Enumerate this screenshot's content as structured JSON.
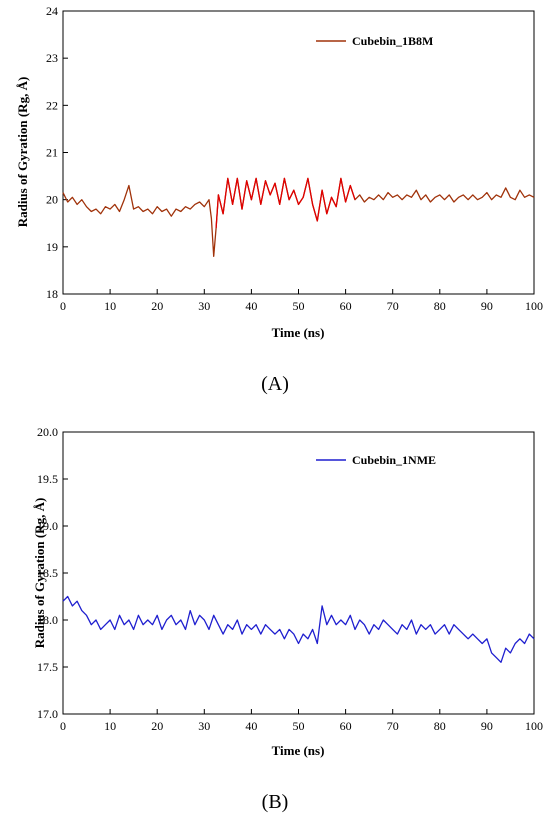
{
  "chart_data": [
    {
      "type": "line",
      "panel_label": "(A)",
      "xlabel": "Time (ns)",
      "ylabel": "Radius of Gyration (Rg, Å)",
      "xlim": [
        0,
        100
      ],
      "ylim": [
        18,
        24
      ],
      "xticks": [
        "0",
        "10",
        "20",
        "30",
        "40",
        "50",
        "60",
        "70",
        "80",
        "90",
        "100"
      ],
      "yticks": [
        "18",
        "19",
        "20",
        "21",
        "22",
        "23",
        "24"
      ],
      "legend_position": "top-right",
      "grid": false,
      "series": [
        {
          "name": "Cubebin_1B8M",
          "color": "#a0320a",
          "highlight_color": "#e00000",
          "x": [
            0,
            1,
            2,
            3,
            4,
            5,
            6,
            7,
            8,
            9,
            10,
            11,
            12,
            13,
            14,
            15,
            16,
            17,
            18,
            19,
            20,
            21,
            22,
            23,
            24,
            25,
            26,
            27,
            28,
            29,
            30,
            31,
            31.5,
            32,
            32.5,
            33,
            34,
            35,
            36,
            37,
            38,
            39,
            40,
            41,
            42,
            43,
            44,
            45,
            46,
            47,
            48,
            49,
            50,
            51,
            52,
            53,
            54,
            55,
            56,
            57,
            58,
            59,
            60,
            61,
            62,
            63,
            64,
            65,
            66,
            67,
            68,
            69,
            70,
            71,
            72,
            73,
            74,
            75,
            76,
            77,
            78,
            79,
            80,
            81,
            82,
            83,
            84,
            85,
            86,
            87,
            88,
            89,
            90,
            91,
            92,
            93,
            94,
            95,
            96,
            97,
            98,
            99,
            100
          ],
          "y": [
            20.15,
            19.95,
            20.05,
            19.9,
            20.0,
            19.85,
            19.75,
            19.8,
            19.7,
            19.85,
            19.8,
            19.9,
            19.75,
            20.0,
            20.3,
            19.8,
            19.85,
            19.75,
            19.8,
            19.7,
            19.85,
            19.75,
            19.8,
            19.65,
            19.8,
            19.75,
            19.85,
            19.8,
            19.9,
            19.95,
            19.85,
            20.0,
            19.6,
            18.8,
            19.4,
            20.1,
            19.7,
            20.45,
            19.9,
            20.45,
            19.8,
            20.4,
            20.0,
            20.45,
            19.9,
            20.4,
            20.1,
            20.35,
            19.9,
            20.45,
            20.0,
            20.2,
            19.9,
            20.05,
            20.45,
            19.9,
            19.55,
            20.2,
            19.7,
            20.05,
            19.85,
            20.45,
            19.95,
            20.3,
            20.0,
            20.1,
            19.95,
            20.05,
            20.0,
            20.1,
            20.0,
            20.15,
            20.05,
            20.1,
            20.0,
            20.1,
            20.05,
            20.2,
            20.0,
            20.1,
            19.95,
            20.05,
            20.1,
            20.0,
            20.1,
            19.95,
            20.05,
            20.1,
            20.0,
            20.1,
            20.0,
            20.05,
            20.15,
            20.0,
            20.1,
            20.05,
            20.25,
            20.05,
            20.0,
            20.2,
            20.05,
            20.1,
            20.05
          ],
          "highlight_x_range": [
            32.5,
            62
          ]
        }
      ]
    },
    {
      "type": "line",
      "panel_label": "(B)",
      "xlabel": "Time (ns)",
      "ylabel": "Radius of Gyration (Rg, Å)",
      "xlim": [
        0,
        100
      ],
      "ylim": [
        17.0,
        20.0
      ],
      "xticks": [
        "0",
        "10",
        "20",
        "30",
        "40",
        "50",
        "60",
        "70",
        "80",
        "90",
        "100"
      ],
      "yticks": [
        "17.0",
        "17.5",
        "18.0",
        "18.5",
        "19.0",
        "19.5",
        "20.0"
      ],
      "legend_position": "top-right",
      "grid": false,
      "series": [
        {
          "name": "Cubebin_1NME",
          "color": "#1f1fcf",
          "x": [
            0,
            1,
            2,
            3,
            4,
            5,
            6,
            7,
            8,
            9,
            10,
            11,
            12,
            13,
            14,
            15,
            16,
            17,
            18,
            19,
            20,
            21,
            22,
            23,
            24,
            25,
            26,
            27,
            28,
            29,
            30,
            31,
            32,
            33,
            34,
            35,
            36,
            37,
            38,
            39,
            40,
            41,
            42,
            43,
            44,
            45,
            46,
            47,
            48,
            49,
            50,
            51,
            52,
            53,
            54,
            55,
            56,
            57,
            58,
            59,
            60,
            61,
            62,
            63,
            64,
            65,
            66,
            67,
            68,
            69,
            70,
            71,
            72,
            73,
            74,
            75,
            76,
            77,
            78,
            79,
            80,
            81,
            82,
            83,
            84,
            85,
            86,
            87,
            88,
            89,
            90,
            91,
            92,
            93,
            94,
            95,
            96,
            97,
            98,
            99,
            100
          ],
          "y": [
            18.2,
            18.25,
            18.15,
            18.2,
            18.1,
            18.05,
            17.95,
            18.0,
            17.9,
            17.95,
            18.0,
            17.9,
            18.05,
            17.95,
            18.0,
            17.9,
            18.05,
            17.95,
            18.0,
            17.95,
            18.05,
            17.9,
            18.0,
            18.05,
            17.95,
            18.0,
            17.9,
            18.1,
            17.95,
            18.05,
            18.0,
            17.9,
            18.05,
            17.95,
            17.85,
            17.95,
            17.9,
            18.0,
            17.85,
            17.95,
            17.9,
            17.95,
            17.85,
            17.95,
            17.9,
            17.85,
            17.9,
            17.8,
            17.9,
            17.85,
            17.75,
            17.85,
            17.8,
            17.9,
            17.75,
            18.15,
            17.95,
            18.05,
            17.95,
            18.0,
            17.95,
            18.05,
            17.9,
            18.0,
            17.95,
            17.85,
            17.95,
            17.9,
            18.0,
            17.95,
            17.9,
            17.85,
            17.95,
            17.9,
            18.0,
            17.85,
            17.95,
            17.9,
            17.95,
            17.85,
            17.9,
            17.95,
            17.85,
            17.95,
            17.9,
            17.85,
            17.8,
            17.85,
            17.8,
            17.75,
            17.8,
            17.65,
            17.6,
            17.55,
            17.7,
            17.65,
            17.75,
            17.8,
            17.75,
            17.85,
            17.8
          ]
        }
      ]
    }
  ]
}
